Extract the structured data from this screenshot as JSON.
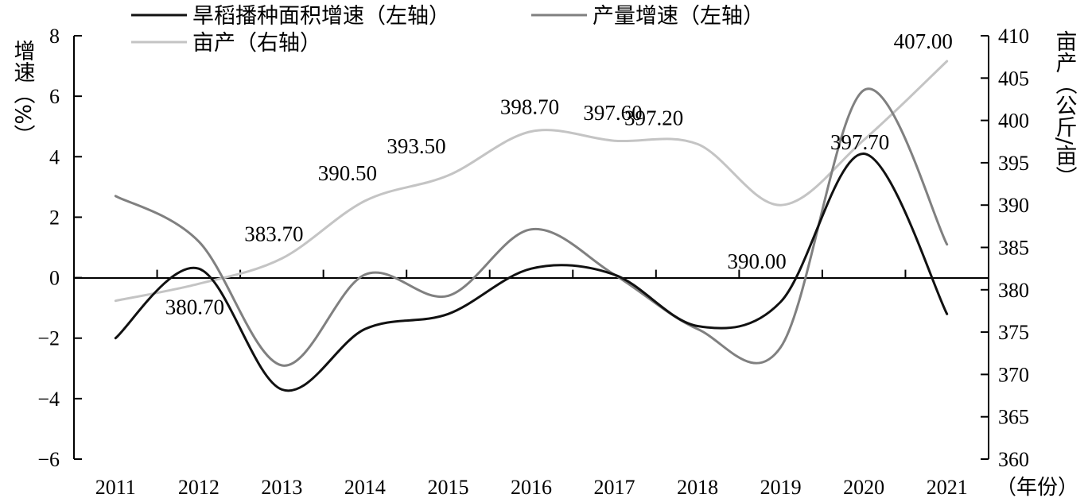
{
  "chart_data": {
    "type": "line",
    "categories": [
      "2011",
      "2012",
      "2013",
      "2014",
      "2015",
      "2016",
      "2017",
      "2018",
      "2019",
      "2020",
      "2021"
    ],
    "x_unit_label": "（年份）",
    "y_left": {
      "label": "增速（%）",
      "range": [
        -6,
        8
      ],
      "ticks": [
        8,
        6,
        4,
        2,
        0,
        -2,
        -4,
        -6
      ],
      "tick_labels": [
        "8",
        "6",
        "4",
        "2",
        "0",
        "−2",
        "−4",
        "−6"
      ]
    },
    "y_right": {
      "label": "亩产（公斤/亩）",
      "range": [
        360,
        410
      ],
      "ticks": [
        410,
        405,
        400,
        395,
        390,
        385,
        380,
        375,
        370,
        365,
        360
      ],
      "tick_labels": [
        "410",
        "405",
        "400",
        "395",
        "390",
        "385",
        "380",
        "375",
        "370",
        "365",
        "360"
      ]
    },
    "series": [
      {
        "name": "旱稻播种面积增速（左轴）",
        "axis": "left",
        "color": "#111111",
        "values": [
          -2.0,
          0.3,
          -3.7,
          -1.7,
          -1.2,
          0.3,
          0.1,
          -1.6,
          -0.8,
          4.1,
          -1.2
        ]
      },
      {
        "name": "产量增速（左轴）",
        "axis": "left",
        "color": "#808080",
        "values": [
          2.7,
          1.2,
          -2.9,
          0.1,
          -0.6,
          1.6,
          0.1,
          -1.7,
          -2.3,
          6.2,
          1.1
        ]
      },
      {
        "name": "亩产（右轴）",
        "axis": "right",
        "color": "#c4c4c4",
        "values": [
          378.7,
          380.7,
          383.7,
          390.5,
          393.5,
          398.7,
          397.6,
          397.2,
          390.0,
          397.7,
          407.0
        ],
        "data_labels": [
          "",
          "380.70",
          "383.70",
          "390.50",
          "393.50",
          "398.70",
          "397.60",
          "397.20",
          "390.00",
          "397.70",
          "407.00"
        ]
      }
    ]
  }
}
